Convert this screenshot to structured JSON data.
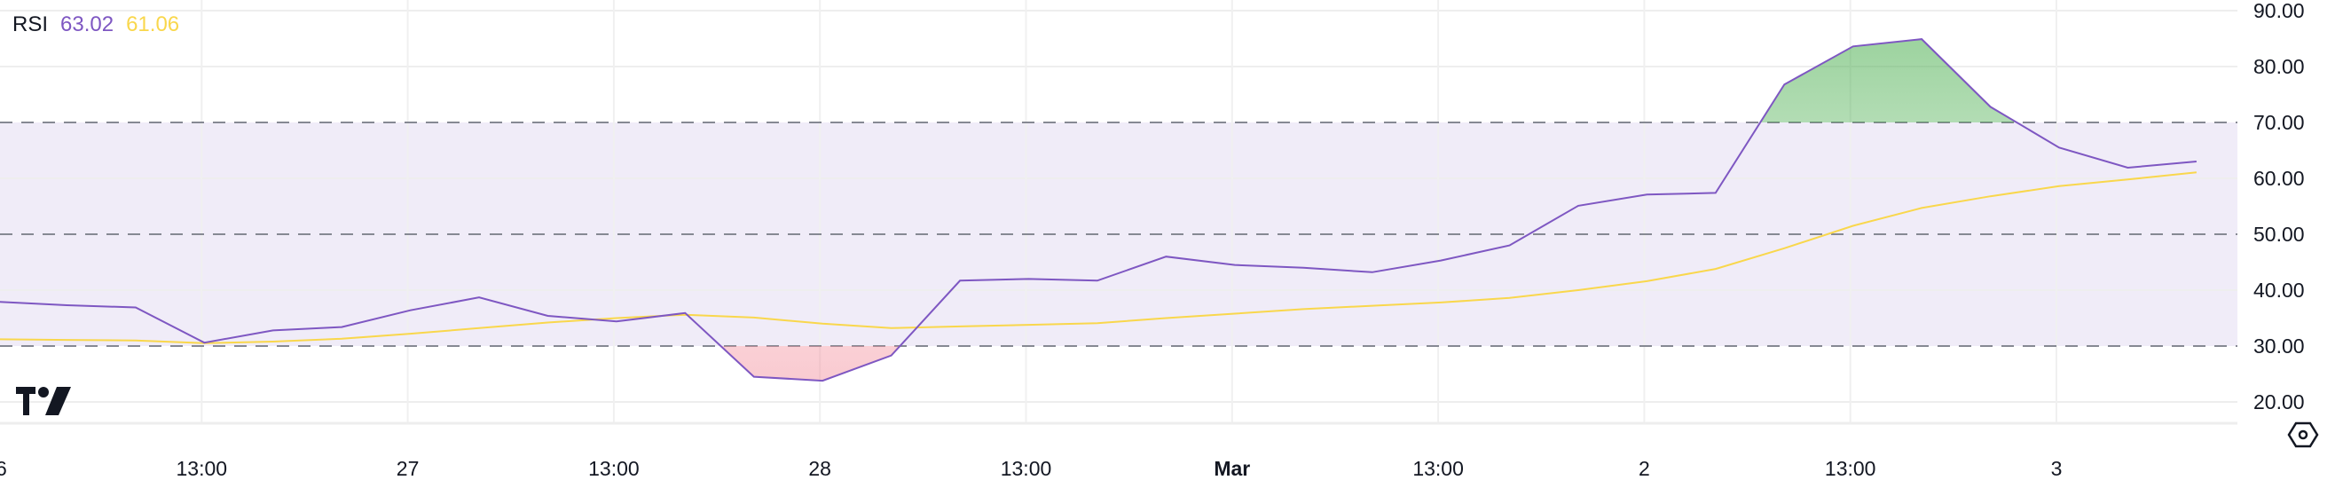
{
  "legend": {
    "name": "RSI",
    "rsi_value": "63.02",
    "ma_value": "61.06"
  },
  "colors": {
    "rsi": "#7e57c2",
    "ma": "#f9d74c",
    "band": "#f0ecf8",
    "overbought_fill": "#4caf50",
    "oversold_fill": "#f28b99"
  },
  "icons": {
    "logo": "tradingview-logo",
    "settings": "settings-hexagon-icon"
  },
  "chart_data": {
    "type": "line",
    "title": "RSI",
    "x": [
      "26 01:00",
      "26 05:00",
      "26 09:00",
      "26 13:00",
      "26 17:00",
      "26 21:00",
      "27 01:00",
      "27 05:00",
      "27 09:00",
      "27 13:00",
      "27 17:00",
      "27 21:00",
      "28 01:00",
      "28 05:00",
      "28 09:00",
      "28 13:00",
      "28 17:00",
      "28 21:00",
      "Mar 1 01:00",
      "Mar 1 05:00",
      "Mar 1 09:00",
      "Mar 1 13:00",
      "Mar 1 17:00",
      "Mar 1 21:00",
      "2 01:00",
      "2 05:00",
      "2 09:00",
      "2 13:00",
      "2 17:00",
      "2 21:00",
      "3 01:00",
      "3 05:00",
      "3 09:00"
    ],
    "series": [
      {
        "name": "RSI",
        "values": [
          37.9,
          37.3,
          36.9,
          30.6,
          32.8,
          33.4,
          36.4,
          38.7,
          35.4,
          34.4,
          35.9,
          24.5,
          23.8,
          28.3,
          41.7,
          42.0,
          41.7,
          46.0,
          44.5,
          44.0,
          43.2,
          45.3,
          48.0,
          55.1,
          57.1,
          57.4,
          76.8,
          83.6,
          84.9,
          72.8,
          65.5,
          61.9,
          63.02
        ]
      },
      {
        "name": "RSI-based MA",
        "values": [
          31.2,
          31.1,
          31.0,
          30.5,
          30.8,
          31.3,
          32.2,
          33.2,
          34.2,
          35.0,
          35.6,
          35.1,
          34.0,
          33.2,
          33.5,
          33.8,
          34.1,
          35.0,
          35.8,
          36.6,
          37.2,
          37.8,
          38.6,
          40.0,
          41.6,
          43.8,
          47.5,
          51.5,
          54.7,
          56.8,
          58.6,
          59.8,
          61.06
        ]
      }
    ],
    "ylim": [
      18,
      91
    ],
    "yticks": [
      "90.00",
      "80.00",
      "70.00",
      "60.00",
      "50.00",
      "40.00",
      "30.00",
      "20.00"
    ],
    "xticks": [
      "26",
      "13:00",
      "27",
      "13:00",
      "28",
      "13:00",
      "Mar",
      "13:00",
      "2",
      "13:00",
      "3"
    ],
    "bands": {
      "upper": 70,
      "middle": 50,
      "lower": 30
    },
    "grid": true
  }
}
